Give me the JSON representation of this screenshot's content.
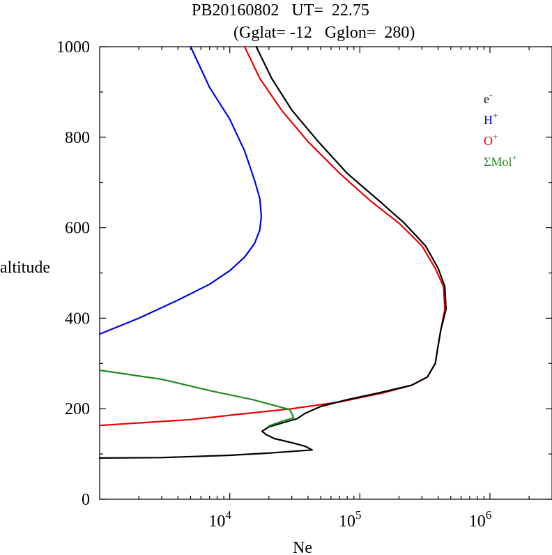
{
  "chart_data": {
    "type": "line",
    "title_line1": "PB20160802   UT=  22.75",
    "title_line2": "(Gglat= -12   Gglon=  280)",
    "xlabel": "Ne",
    "ylabel": "altitude",
    "xscale": "log",
    "xlim": [
      1000,
      3000000
    ],
    "ylim": [
      0,
      1000
    ],
    "y_ticks": [
      0,
      200,
      400,
      600,
      800,
      1000
    ],
    "y_tick_labels": [
      "0",
      "200",
      "400",
      "600",
      "800",
      "1000"
    ],
    "x_ticks": [
      {
        "base": "10",
        "exp": "4",
        "value": 10000
      },
      {
        "base": "10",
        "exp": "5",
        "value": 100000
      },
      {
        "base": "10",
        "exp": "6",
        "value": 1000000
      }
    ],
    "legend": [
      {
        "base": "e",
        "sup": "-",
        "color": "#000000"
      },
      {
        "base": "H",
        "sup": "+",
        "color": "#0000ee"
      },
      {
        "base": "O",
        "sup": "+",
        "color": "#ee0000"
      },
      {
        "base": "ΣMol",
        "sup": "+",
        "color": "#228b22"
      }
    ],
    "series": [
      {
        "name": "H+",
        "color": "#0000ee",
        "points": [
          [
            1000,
            365
          ],
          [
            2000,
            400
          ],
          [
            4000,
            440
          ],
          [
            7000,
            475
          ],
          [
            10000,
            505
          ],
          [
            13000,
            535
          ],
          [
            15500,
            565
          ],
          [
            17000,
            595
          ],
          [
            17500,
            625
          ],
          [
            17000,
            665
          ],
          [
            15500,
            705
          ],
          [
            13000,
            770
          ],
          [
            10000,
            840
          ],
          [
            7000,
            910
          ],
          [
            5000,
            1000
          ]
        ]
      },
      {
        "name": "O+",
        "color": "#ee0000",
        "points": [
          [
            1000,
            163
          ],
          [
            5000,
            176
          ],
          [
            12000,
            188
          ],
          [
            30000,
            200
          ],
          [
            70000,
            215
          ],
          [
            150000,
            235
          ],
          [
            250000,
            252
          ],
          [
            330000,
            270
          ],
          [
            380000,
            300
          ],
          [
            400000,
            340
          ],
          [
            420000,
            375
          ],
          [
            450000,
            420
          ],
          [
            440000,
            470
          ],
          [
            380000,
            510
          ],
          [
            300000,
            560
          ],
          [
            200000,
            610
          ],
          [
            120000,
            660
          ],
          [
            70000,
            720
          ],
          [
            40000,
            790
          ],
          [
            25000,
            860
          ],
          [
            17000,
            930
          ],
          [
            13000,
            1000
          ]
        ]
      },
      {
        "name": "e-",
        "color": "#000000",
        "points": [
          [
            1000,
            91
          ],
          [
            3000,
            92
          ],
          [
            10000,
            97
          ],
          [
            20000,
            102
          ],
          [
            43000,
            109
          ],
          [
            38000,
            117
          ],
          [
            30000,
            125
          ],
          [
            22000,
            134
          ],
          [
            19000,
            143
          ],
          [
            17700,
            150
          ],
          [
            20000,
            160
          ],
          [
            25000,
            168
          ],
          [
            33000,
            178
          ],
          [
            38000,
            190
          ],
          [
            50000,
            205
          ],
          [
            80000,
            220
          ],
          [
            140000,
            235
          ],
          [
            250000,
            252
          ],
          [
            330000,
            270
          ],
          [
            380000,
            300
          ],
          [
            400000,
            340
          ],
          [
            420000,
            375
          ],
          [
            460000,
            420
          ],
          [
            450000,
            470
          ],
          [
            400000,
            510
          ],
          [
            320000,
            560
          ],
          [
            220000,
            610
          ],
          [
            140000,
            660
          ],
          [
            80000,
            720
          ],
          [
            48000,
            790
          ],
          [
            30000,
            860
          ],
          [
            21000,
            930
          ],
          [
            16000,
            1000
          ]
        ]
      },
      {
        "name": "ΣMol+",
        "color": "#228b22",
        "points": [
          [
            1000,
            285
          ],
          [
            3000,
            265
          ],
          [
            7000,
            240
          ],
          [
            15000,
            220
          ],
          [
            29000,
            198
          ],
          [
            31000,
            180
          ],
          [
            25000,
            172
          ],
          [
            20000,
            162
          ]
        ]
      }
    ]
  }
}
